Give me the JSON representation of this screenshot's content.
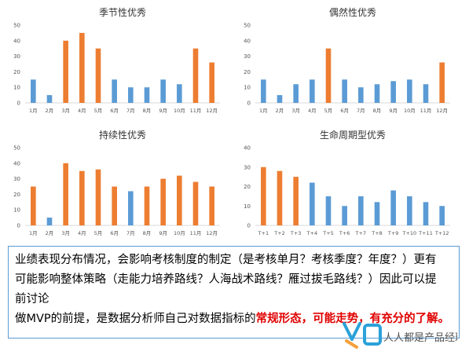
{
  "charts": [
    {
      "id": "seasonal",
      "chart_data": {
        "type": "bar",
        "title": "季节性优秀",
        "categories": [
          "1月",
          "2月",
          "3月",
          "4月",
          "5月",
          "6月",
          "7月",
          "8月",
          "9月",
          "10月",
          "11月",
          "12月"
        ],
        "values": [
          15,
          5,
          40,
          45,
          35,
          15,
          10,
          10,
          15,
          12,
          35,
          26
        ],
        "highlight": [
          false,
          false,
          true,
          true,
          true,
          false,
          false,
          false,
          false,
          false,
          true,
          true
        ],
        "ylim": [
          0,
          50
        ],
        "yticks": [
          0,
          10,
          20,
          30,
          40,
          50
        ],
        "xlabel": "",
        "ylabel": "",
        "grid": false
      }
    },
    {
      "id": "random",
      "chart_data": {
        "type": "bar",
        "title": "偶然性优秀",
        "categories": [
          "1月",
          "2月",
          "3月",
          "4月",
          "5月",
          "6月",
          "7月",
          "8月",
          "9月",
          "10月",
          "11月",
          "12月"
        ],
        "values": [
          15,
          5,
          12,
          15,
          35,
          15,
          10,
          12,
          14,
          15,
          12,
          26
        ],
        "highlight": [
          false,
          false,
          false,
          false,
          true,
          false,
          false,
          false,
          false,
          false,
          false,
          true
        ],
        "ylim": [
          0,
          50
        ],
        "yticks": [
          0,
          10,
          20,
          30,
          40,
          50
        ],
        "xlabel": "",
        "ylabel": "",
        "grid": false
      }
    },
    {
      "id": "sustained",
      "chart_data": {
        "type": "bar",
        "title": "持续性优秀",
        "categories": [
          "1月",
          "2月",
          "3月",
          "4月",
          "5月",
          "6月",
          "7月",
          "8月",
          "9月",
          "10月",
          "11月",
          "12月"
        ],
        "values": [
          25,
          5,
          40,
          35,
          36,
          25,
          22,
          25,
          30,
          32,
          28,
          25
        ],
        "highlight": [
          true,
          false,
          true,
          true,
          true,
          true,
          false,
          true,
          true,
          true,
          true,
          true
        ],
        "ylim": [
          0,
          50
        ],
        "yticks": [
          0,
          10,
          20,
          30,
          40,
          50
        ],
        "xlabel": "",
        "ylabel": "",
        "grid": false
      }
    },
    {
      "id": "lifecycle",
      "chart_data": {
        "type": "bar",
        "title": "生命周期型优秀",
        "categories": [
          "T+1",
          "T+2",
          "T+3",
          "T+4",
          "T+5",
          "T+6",
          "T+7",
          "T+8",
          "T+9",
          "T+10",
          "T+11",
          "T+12"
        ],
        "values": [
          30,
          28,
          25,
          22,
          15,
          10,
          15,
          12,
          18,
          15,
          12,
          10
        ],
        "highlight": [
          true,
          true,
          true,
          false,
          false,
          false,
          false,
          false,
          false,
          false,
          false,
          false
        ],
        "ylim": [
          0,
          40
        ],
        "yticks": [
          0,
          10,
          20,
          30,
          40
        ],
        "xlabel": "",
        "ylabel": "",
        "grid": false
      }
    }
  ],
  "colors": {
    "blue": "#5b9bd5",
    "orange": "#ed7d31",
    "axis": "#d9d9d9",
    "text_box_border": "#5b9bd5",
    "highlight_text": "#e00000"
  },
  "textbox": {
    "line1": "业绩表现分布情况，会影响考核制度的制定（是考核单月？考核季度？年度？）更有",
    "line2": "可能影响整体策略（走能力培养路线？人海战术路线？雁过拔毛路线？）因此可以提",
    "line3": "前讨论",
    "line4_prefix": "做MVP的前提，是数据分析师自己对数据指标的",
    "line4_highlight": "常规形态，可能走势，有充分的了解。"
  },
  "logo": {
    "text": "人人都是产品经理",
    "icon": "brand-logo-icon"
  }
}
